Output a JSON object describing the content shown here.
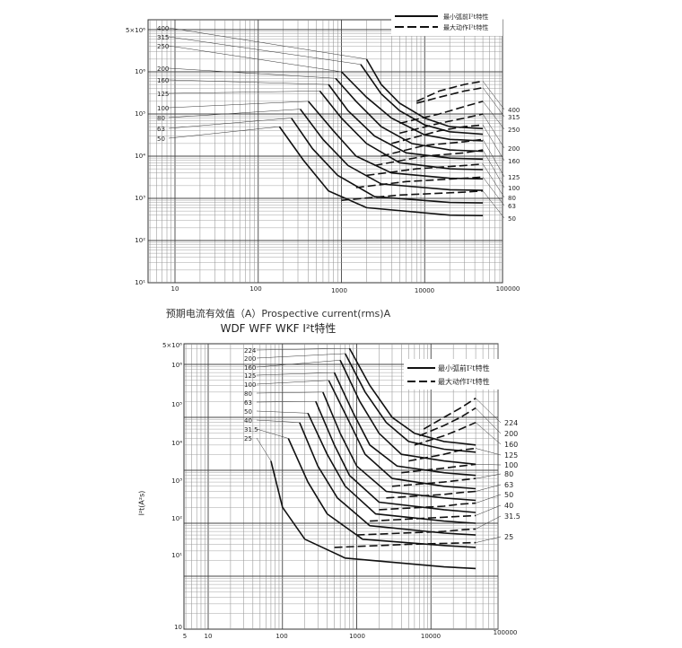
{
  "charts": [
    {
      "caption": "预期电流有效值（A）Prospective current(rms)A",
      "x_ticks": [
        "10",
        "100",
        "1000",
        "10000",
        "100000"
      ],
      "y_ticks": [
        "5×10⁶",
        "10⁶",
        "10⁵",
        "10⁴",
        "10³",
        "10²",
        "10¹"
      ],
      "legend": [
        "最小弧前I²t特性",
        "最大动作I²t特性"
      ],
      "left_ratings": [
        "400",
        "315",
        "250",
        "200",
        "160",
        "125",
        "100",
        "80",
        "63",
        "50"
      ],
      "right_ratings": [
        "400",
        "315",
        "250",
        "200",
        "160",
        "125",
        "100",
        "80",
        "63",
        "50"
      ]
    },
    {
      "title": "WDF WFF WKF I²t特性",
      "ylabel": "I²t(A²s)",
      "x_ticks": [
        "5",
        "10",
        "100",
        "1000",
        "10000",
        "100000"
      ],
      "y_ticks": [
        "5×10⁶",
        "10⁶",
        "10⁵",
        "10⁴",
        "10³",
        "10²",
        "10¹",
        "10"
      ],
      "legend": [
        "最小弧前I²t特性",
        "最大动作I²t特性"
      ],
      "left_ratings": [
        "224",
        "200",
        "160",
        "125",
        "100",
        "80",
        "63",
        "50",
        "40",
        "31.5",
        "25"
      ],
      "right_ratings": [
        "224",
        "200",
        "160",
        "125",
        "100",
        "80",
        "63",
        "50",
        "40",
        "31.5",
        "25"
      ]
    }
  ],
  "chart_data": [
    {
      "type": "line",
      "xlabel": "预期电流有效值（A）Prospective current(rms)A",
      "ylabel": "",
      "x_scale": "log",
      "y_scale": "log",
      "xlim": [
        5,
        50000
      ],
      "ylim": [
        10,
        5000000
      ],
      "series": [
        {
          "name": "400",
          "min_prearc_I2t": [
            [
              2000,
              2000000
            ],
            [
              3000,
              500000
            ],
            [
              5000,
              180000
            ],
            [
              10000,
              80000
            ],
            [
              20000,
              50000
            ],
            [
              50000,
              45000
            ]
          ],
          "max_operating_I2t": [
            [
              8000,
              200000
            ],
            [
              15000,
              350000
            ],
            [
              30000,
              500000
            ],
            [
              50000,
              600000
            ]
          ]
        },
        {
          "name": "315",
          "min_prearc_I2t": [
            [
              1700,
              1500000
            ],
            [
              3000,
              300000
            ],
            [
              5000,
              120000
            ],
            [
              10000,
              55000
            ],
            [
              20000,
              38000
            ],
            [
              50000,
              33000
            ]
          ],
          "max_operating_I2t": [
            [
              8000,
              180000
            ],
            [
              15000,
              250000
            ],
            [
              30000,
              350000
            ],
            [
              50000,
              420000
            ]
          ]
        },
        {
          "name": "250",
          "min_prearc_I2t": [
            [
              1000,
              1000000
            ],
            [
              2000,
              250000
            ],
            [
              4000,
              80000
            ],
            [
              10000,
              32000
            ],
            [
              20000,
              25000
            ],
            [
              50000,
              23000
            ]
          ],
          "max_operating_I2t": [
            [
              5000,
              60000
            ],
            [
              15000,
              100000
            ],
            [
              30000,
              150000
            ],
            [
              50000,
              200000
            ]
          ]
        },
        {
          "name": "200",
          "min_prearc_I2t": [
            [
              850,
              700000
            ],
            [
              1500,
              200000
            ],
            [
              3000,
              50000
            ],
            [
              7000,
              20000
            ],
            [
              20000,
              14000
            ],
            [
              50000,
              13000
            ]
          ],
          "max_operating_I2t": [
            [
              5000,
              35000
            ],
            [
              15000,
              60000
            ],
            [
              30000,
              80000
            ],
            [
              50000,
              100000
            ]
          ]
        },
        {
          "name": "160",
          "min_prearc_I2t": [
            [
              700,
              500000
            ],
            [
              1200,
              120000
            ],
            [
              2500,
              30000
            ],
            [
              6000,
              12000
            ],
            [
              20000,
              9000
            ],
            [
              50000,
              8500
            ]
          ],
          "max_operating_I2t": [
            [
              4000,
              20000
            ],
            [
              15000,
              40000
            ],
            [
              30000,
              50000
            ],
            [
              50000,
              55000
            ]
          ]
        },
        {
          "name": "125",
          "min_prearc_I2t": [
            [
              550,
              350000
            ],
            [
              1000,
              80000
            ],
            [
              2000,
              20000
            ],
            [
              5000,
              7000
            ],
            [
              20000,
              5000
            ],
            [
              50000,
              4800
            ]
          ],
          "max_operating_I2t": [
            [
              3000,
              10000
            ],
            [
              10000,
              18000
            ],
            [
              30000,
              22000
            ],
            [
              50000,
              25000
            ]
          ]
        },
        {
          "name": "100",
          "min_prearc_I2t": [
            [
              400,
              200000
            ],
            [
              800,
              40000
            ],
            [
              1500,
              10000
            ],
            [
              4000,
              4000
            ],
            [
              20000,
              3000
            ],
            [
              50000,
              2900
            ]
          ],
          "max_operating_I2t": [
            [
              2500,
              6000
            ],
            [
              10000,
              10000
            ],
            [
              30000,
              12000
            ],
            [
              50000,
              14000
            ]
          ]
        },
        {
          "name": "80",
          "min_prearc_I2t": [
            [
              320,
              130000
            ],
            [
              600,
              25000
            ],
            [
              1200,
              6000
            ],
            [
              3000,
              2200
            ],
            [
              20000,
              1600
            ],
            [
              50000,
              1550
            ]
          ],
          "max_operating_I2t": [
            [
              2000,
              3500
            ],
            [
              8000,
              5000
            ],
            [
              30000,
              6000
            ],
            [
              50000,
              6500
            ]
          ]
        },
        {
          "name": "63",
          "min_prearc_I2t": [
            [
              250,
              80000
            ],
            [
              450,
              15000
            ],
            [
              900,
              3500
            ],
            [
              2500,
              1100
            ],
            [
              20000,
              800
            ],
            [
              50000,
              780
            ]
          ],
          "max_operating_I2t": [
            [
              1500,
              1800
            ],
            [
              6000,
              2500
            ],
            [
              30000,
              3000
            ],
            [
              50000,
              3200
            ]
          ]
        },
        {
          "name": "50",
          "min_prearc_I2t": [
            [
              180,
              50000
            ],
            [
              350,
              8000
            ],
            [
              700,
              1500
            ],
            [
              2000,
              600
            ],
            [
              20000,
              400
            ],
            [
              50000,
              390
            ]
          ],
          "max_operating_I2t": [
            [
              1000,
              900
            ],
            [
              5000,
              1200
            ],
            [
              30000,
              1400
            ],
            [
              50000,
              1500
            ]
          ]
        }
      ]
    },
    {
      "type": "line",
      "title": "WDF WFF WKF I²t特性",
      "xlabel": "",
      "ylabel": "I²t(A²s)",
      "x_scale": "log",
      "y_scale": "log",
      "xlim": [
        5,
        100000
      ],
      "ylim": [
        10,
        5000000
      ],
      "series": [
        {
          "name": "224",
          "min_prearc_I2t": [
            [
              800,
              2000000
            ],
            [
              1500,
              400000
            ],
            [
              3000,
              100000
            ],
            [
              6000,
              50000
            ],
            [
              15000,
              35000
            ],
            [
              40000,
              30000
            ]
          ],
          "max_operating_I2t": [
            [
              8000,
              60000
            ],
            [
              15000,
              100000
            ],
            [
              25000,
              150000
            ],
            [
              40000,
              230000
            ]
          ]
        },
        {
          "name": "200",
          "min_prearc_I2t": [
            [
              700,
              1600000
            ],
            [
              1300,
              300000
            ],
            [
              2500,
              80000
            ],
            [
              5000,
              35000
            ],
            [
              15000,
              25000
            ],
            [
              40000,
              22000
            ]
          ],
          "max_operating_I2t": [
            [
              7000,
              45000
            ],
            [
              15000,
              70000
            ],
            [
              25000,
              100000
            ],
            [
              40000,
              150000
            ]
          ]
        },
        {
          "name": "160",
          "min_prearc_I2t": [
            [
              600,
              1200000
            ],
            [
              1100,
              200000
            ],
            [
              2000,
              50000
            ],
            [
              4000,
              20000
            ],
            [
              15000,
              15000
            ],
            [
              40000,
              13000
            ]
          ],
          "max_operating_I2t": [
            [
              6000,
              30000
            ],
            [
              15000,
              45000
            ],
            [
              25000,
              60000
            ],
            [
              40000,
              80000
            ]
          ]
        },
        {
          "name": "125",
          "min_prearc_I2t": [
            [
              500,
              700000
            ],
            [
              900,
              120000
            ],
            [
              1500,
              30000
            ],
            [
              3500,
              12000
            ],
            [
              15000,
              9000
            ],
            [
              40000,
              8000
            ]
          ],
          "max_operating_I2t": [
            [
              5000,
              15000
            ],
            [
              15000,
              20000
            ],
            [
              25000,
              24000
            ],
            [
              40000,
              26000
            ]
          ]
        },
        {
          "name": "100",
          "min_prearc_I2t": [
            [
              420,
              500000
            ],
            [
              800,
              80000
            ],
            [
              1300,
              20000
            ],
            [
              3000,
              7000
            ],
            [
              15000,
              5000
            ],
            [
              40000,
              4500
            ]
          ],
          "max_operating_I2t": [
            [
              4000,
              9000
            ],
            [
              15000,
              11000
            ],
            [
              25000,
              12000
            ],
            [
              40000,
              13000
            ]
          ]
        },
        {
          "name": "80",
          "min_prearc_I2t": [
            [
              350,
              300000
            ],
            [
              600,
              50000
            ],
            [
              1000,
              12000
            ],
            [
              2500,
              4000
            ],
            [
              15000,
              3000
            ],
            [
              40000,
              2700
            ]
          ],
          "max_operating_I2t": [
            [
              3000,
              5000
            ],
            [
              15000,
              6000
            ],
            [
              25000,
              6500
            ],
            [
              40000,
              7000
            ]
          ]
        },
        {
          "name": "63",
          "min_prearc_I2t": [
            [
              280,
              200000
            ],
            [
              500,
              30000
            ],
            [
              800,
              8000
            ],
            [
              2000,
              2500
            ],
            [
              15000,
              1800
            ],
            [
              40000,
              1600
            ]
          ],
          "max_operating_I2t": [
            [
              2500,
              3000
            ],
            [
              15000,
              3500
            ],
            [
              25000,
              3800
            ],
            [
              40000,
              4000
            ]
          ]
        },
        {
          "name": "50",
          "min_prearc_I2t": [
            [
              220,
              120000
            ],
            [
              400,
              20000
            ],
            [
              700,
              5000
            ],
            [
              1800,
              1500
            ],
            [
              15000,
              1100
            ],
            [
              40000,
              1000
            ]
          ],
          "max_operating_I2t": [
            [
              2000,
              1800
            ],
            [
              15000,
              2100
            ],
            [
              25000,
              2300
            ],
            [
              40000,
              2400
            ]
          ]
        },
        {
          "name": "40",
          "min_prearc_I2t": [
            [
              170,
              80000
            ],
            [
              300,
              12000
            ],
            [
              550,
              3000
            ],
            [
              1500,
              900
            ],
            [
              15000,
              650
            ],
            [
              40000,
              600
            ]
          ],
          "max_operating_I2t": [
            [
              1500,
              1100
            ],
            [
              15000,
              1300
            ],
            [
              25000,
              1350
            ],
            [
              40000,
              1400
            ]
          ]
        },
        {
          "name": "31.5",
          "min_prearc_I2t": [
            [
              120,
              40000
            ],
            [
              220,
              6000
            ],
            [
              400,
              1500
            ],
            [
              1200,
              500
            ],
            [
              15000,
              380
            ],
            [
              40000,
              350
            ]
          ],
          "max_operating_I2t": [
            [
              1000,
              600
            ],
            [
              15000,
              700
            ],
            [
              25000,
              750
            ],
            [
              40000,
              780
            ]
          ]
        },
        {
          "name": "25",
          "min_prearc_I2t": [
            [
              70,
              15000
            ],
            [
              100,
              2000
            ],
            [
              200,
              500
            ],
            [
              700,
              220
            ],
            [
              15000,
              150
            ],
            [
              40000,
              140
            ]
          ],
          "max_operating_I2t": [
            [
              500,
              350
            ],
            [
              5000,
              400
            ],
            [
              20000,
              420
            ],
            [
              40000,
              430
            ]
          ]
        }
      ]
    }
  ]
}
